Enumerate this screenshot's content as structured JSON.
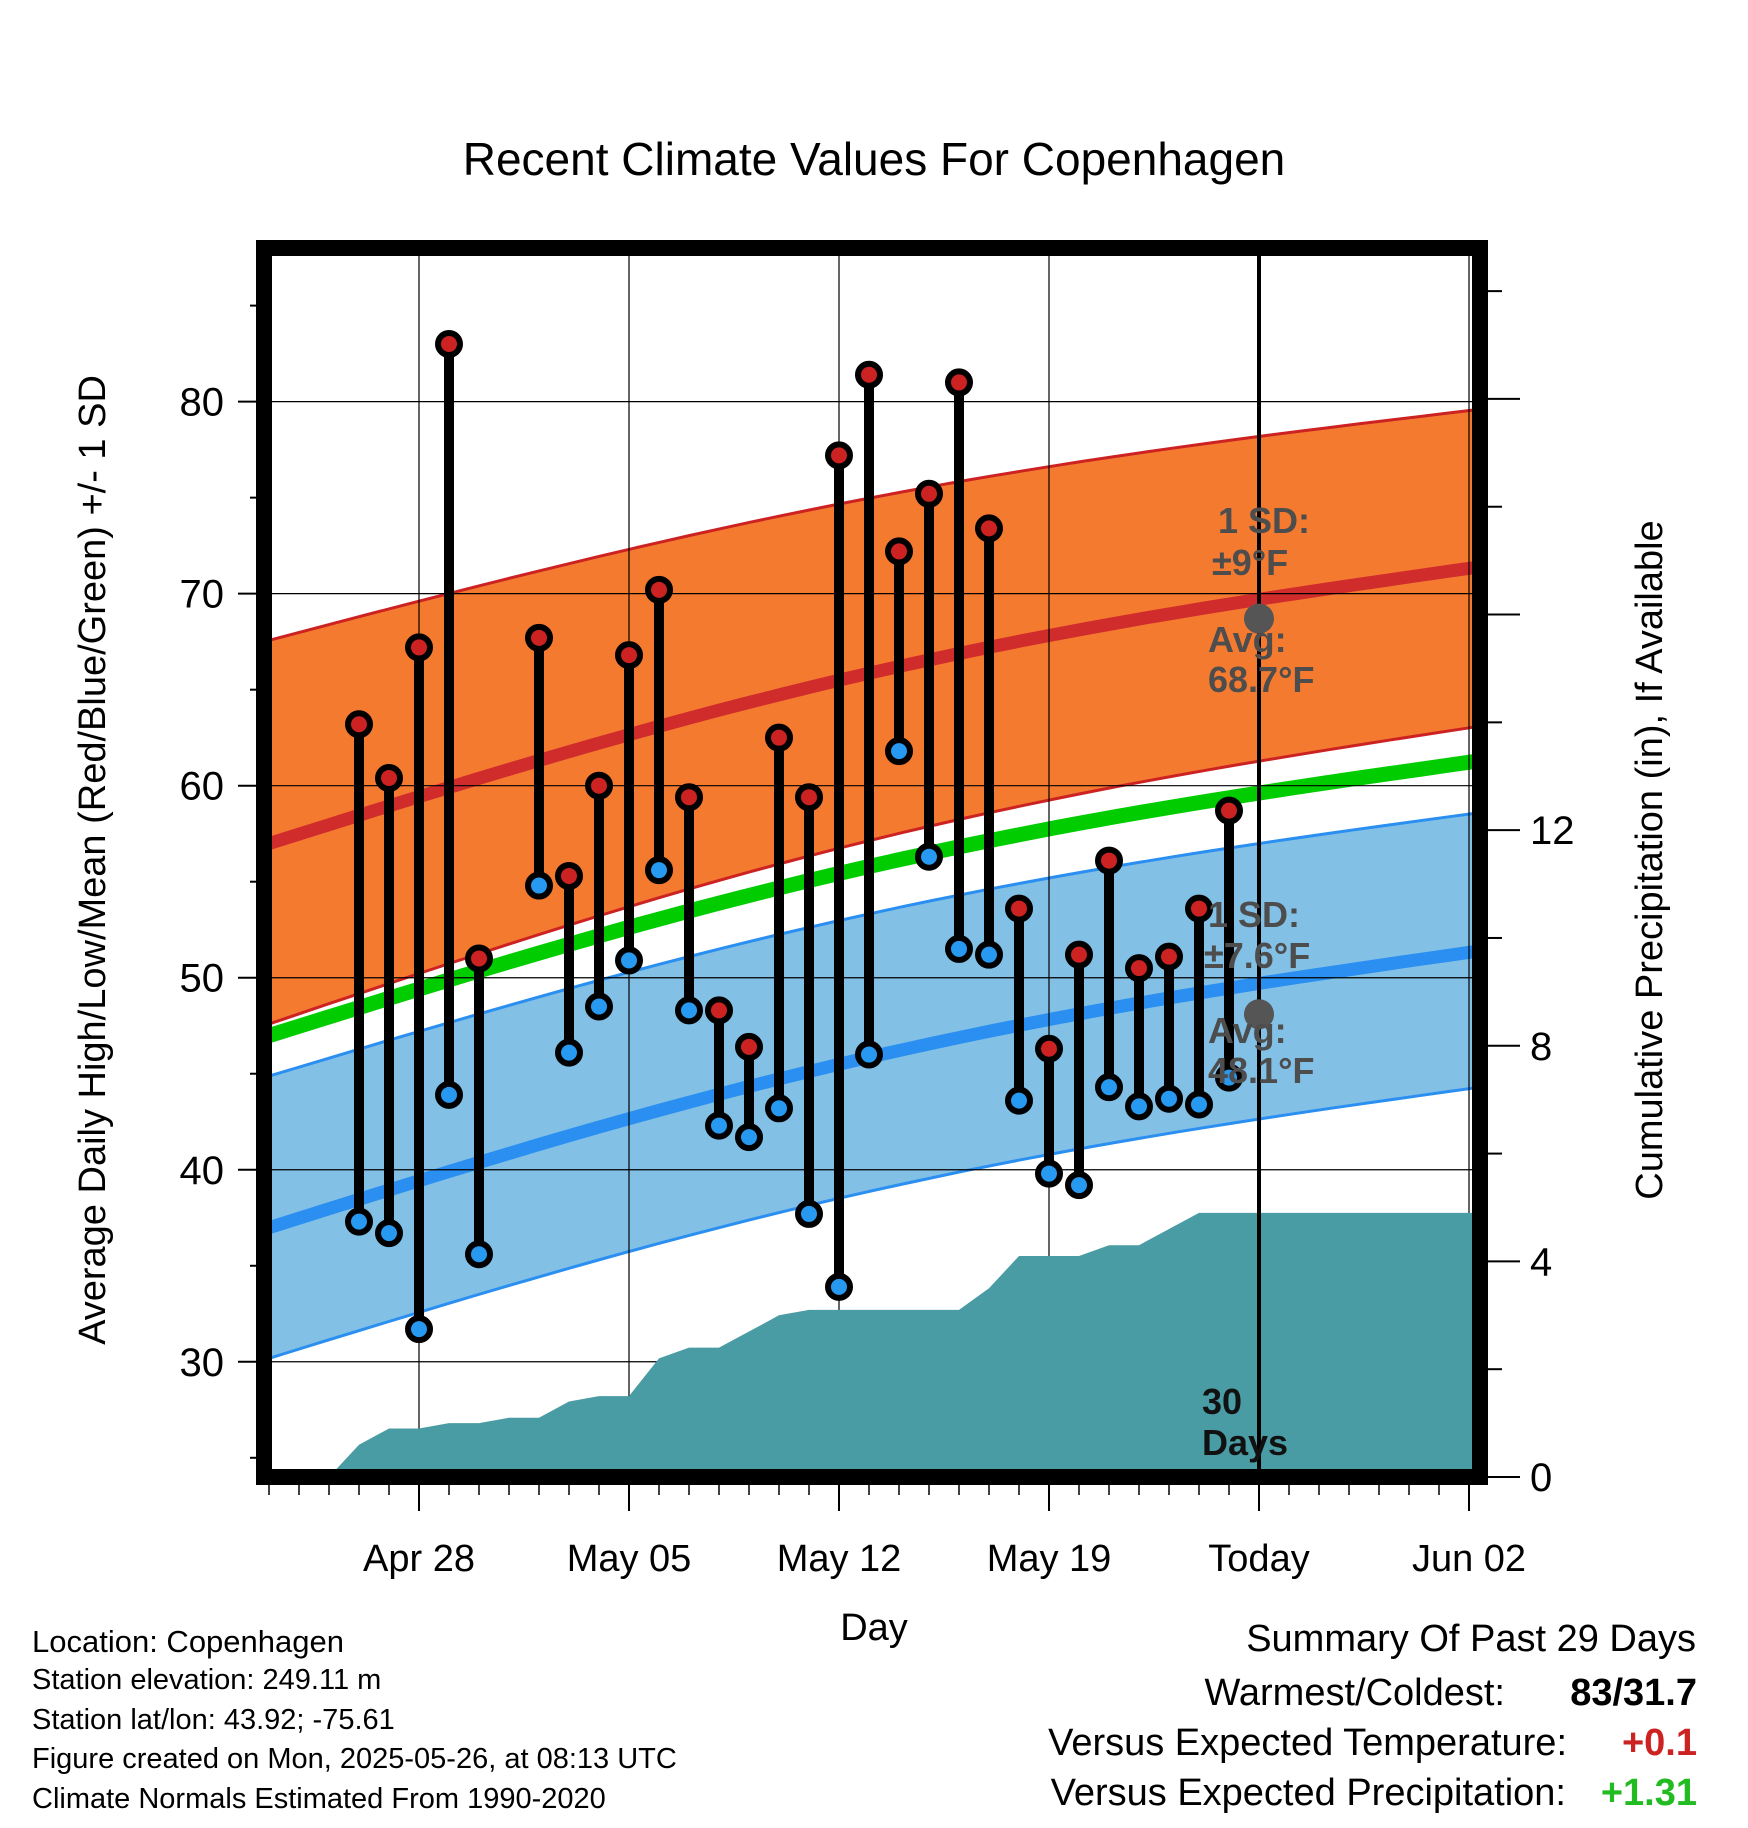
{
  "chart_data": {
    "type": "line",
    "title": "Recent Climate Values For Copenhagen",
    "xlabel": "Day",
    "ylabel": "Average Daily High/Low/Mean (Red/Blue/Green) +/- 1 SD",
    "y2label": "Cumulative Precipitation (in), If Available",
    "ylim": [
      24,
      88
    ],
    "y2lim": [
      0,
      22.8
    ],
    "yticks": [
      "30",
      "40",
      "50",
      "60",
      "70",
      "80"
    ],
    "y2ticks": [
      "0",
      "4",
      "8",
      "12"
    ],
    "x_tick_labels": [
      "Apr 28",
      "May 05",
      "May 12",
      "May 19",
      "Today",
      "Jun 02"
    ],
    "grid": true,
    "days": [
      {
        "date": "2025-04-26",
        "high": 63.2,
        "low": 37.3
      },
      {
        "date": "2025-04-27",
        "high": 60.4,
        "low": 36.7
      },
      {
        "date": "2025-04-28",
        "high": 67.2,
        "low": 31.7
      },
      {
        "date": "2025-04-29",
        "high": 83.0,
        "low": 43.9
      },
      {
        "date": "2025-04-30",
        "high": 51.0,
        "low": 35.6
      },
      {
        "date": "2025-05-02",
        "high": 67.7,
        "low": 54.8
      },
      {
        "date": "2025-05-03",
        "high": 55.3,
        "low": 46.1
      },
      {
        "date": "2025-05-04",
        "high": 60.0,
        "low": 48.5
      },
      {
        "date": "2025-05-05",
        "high": 66.8,
        "low": 50.9
      },
      {
        "date": "2025-05-06",
        "high": 70.2,
        "low": 55.6
      },
      {
        "date": "2025-05-07",
        "high": 59.4,
        "low": 48.3
      },
      {
        "date": "2025-05-08",
        "high": 48.3,
        "low": 42.3
      },
      {
        "date": "2025-05-09",
        "high": 46.4,
        "low": 41.7
      },
      {
        "date": "2025-05-10",
        "high": 62.5,
        "low": 43.2
      },
      {
        "date": "2025-05-11",
        "high": 59.4,
        "low": 37.7
      },
      {
        "date": "2025-05-12",
        "high": 77.2,
        "low": 33.9
      },
      {
        "date": "2025-05-13",
        "high": 81.4,
        "low": 46.0
      },
      {
        "date": "2025-05-14",
        "high": 72.2,
        "low": 61.8
      },
      {
        "date": "2025-05-15",
        "high": 75.2,
        "low": 56.3
      },
      {
        "date": "2025-05-16",
        "high": 81.0,
        "low": 51.5
      },
      {
        "date": "2025-05-17",
        "high": 73.4,
        "low": 51.2
      },
      {
        "date": "2025-05-18",
        "high": 53.6,
        "low": 43.6
      },
      {
        "date": "2025-05-19",
        "high": 46.3,
        "low": 39.8
      },
      {
        "date": "2025-05-20",
        "high": 51.2,
        "low": 39.2
      },
      {
        "date": "2025-05-21",
        "high": 56.1,
        "low": 44.3
      },
      {
        "date": "2025-05-22",
        "high": 50.5,
        "low": 43.3
      },
      {
        "date": "2025-05-23",
        "high": 51.1,
        "low": 43.7
      },
      {
        "date": "2025-05-24",
        "high": 53.6,
        "low": 43.4
      },
      {
        "date": "2025-05-25",
        "high": 58.7,
        "low": 44.8
      }
    ],
    "normals": {
      "start_date": "2025-04-23",
      "end_date": "2025-06-04",
      "high_avg": [
        56.9,
        71.4
      ],
      "high_lower": [
        47.5,
        63.1
      ],
      "high_upper": [
        67.5,
        79.6
      ],
      "low_avg": [
        36.9,
        51.4
      ],
      "low_lower": [
        30.1,
        44.3
      ],
      "low_upper": [
        44.8,
        58.6
      ],
      "mean_avg": [
        46.9,
        61.3
      ]
    },
    "precipitation": [
      {
        "date": "2025-04-25",
        "value": 0.0
      },
      {
        "date": "2025-04-26",
        "value": 0.6
      },
      {
        "date": "2025-04-27",
        "value": 0.9
      },
      {
        "date": "2025-04-28",
        "value": 0.9
      },
      {
        "date": "2025-04-29",
        "value": 1.0
      },
      {
        "date": "2025-04-30",
        "value": 1.0
      },
      {
        "date": "2025-05-01",
        "value": 1.1
      },
      {
        "date": "2025-05-02",
        "value": 1.1
      },
      {
        "date": "2025-05-03",
        "value": 1.4
      },
      {
        "date": "2025-05-04",
        "value": 1.5
      },
      {
        "date": "2025-05-05",
        "value": 1.5
      },
      {
        "date": "2025-05-06",
        "value": 2.2
      },
      {
        "date": "2025-05-07",
        "value": 2.4
      },
      {
        "date": "2025-05-08",
        "value": 2.4
      },
      {
        "date": "2025-05-09",
        "value": 2.7
      },
      {
        "date": "2025-05-10",
        "value": 3.0
      },
      {
        "date": "2025-05-11",
        "value": 3.1
      },
      {
        "date": "2025-05-12",
        "value": 3.1
      },
      {
        "date": "2025-05-13",
        "value": 3.1
      },
      {
        "date": "2025-05-14",
        "value": 3.1
      },
      {
        "date": "2025-05-15",
        "value": 3.1
      },
      {
        "date": "2025-05-16",
        "value": 3.1
      },
      {
        "date": "2025-05-17",
        "value": 3.5
      },
      {
        "date": "2025-05-18",
        "value": 4.1
      },
      {
        "date": "2025-05-19",
        "value": 4.1
      },
      {
        "date": "2025-05-20",
        "value": 4.1
      },
      {
        "date": "2025-05-21",
        "value": 4.3
      },
      {
        "date": "2025-05-22",
        "value": 4.3
      },
      {
        "date": "2025-05-23",
        "value": 4.6
      },
      {
        "date": "2025-05-24",
        "value": 4.9
      },
      {
        "date": "2025-05-25",
        "value": 4.9
      },
      {
        "date": "2025-06-04",
        "value": 4.9
      }
    ],
    "today": "2025-05-26",
    "annotations": {
      "high_sd_label": "1 SD:",
      "high_sd_value": "±9°F",
      "high_avg_label": "Avg:",
      "high_avg_value": "68.7°F",
      "high_avg_today": 68.7,
      "low_sd_label": "1 SD:",
      "low_sd_value": "±7.6°F",
      "low_avg_label": "Avg:",
      "low_avg_value": "48.1°F",
      "low_avg_today": 48.1,
      "days_number": "30",
      "days_word": "Days"
    },
    "colors": {
      "high_band": "#f47a30",
      "high_line": "#d12c2c",
      "low_band": "#82c0e6",
      "low_line": "#2a8ff0",
      "mean_line": "#00cc00",
      "precip": "#4a9ca4",
      "high_marker": "#cc2222",
      "low_marker": "#2899f0",
      "annotation": "#4d4d4d"
    }
  },
  "info": {
    "location": "Location: Copenhagen",
    "elevation": "Station elevation: 249.11 m",
    "latlon": "Station lat/lon: 43.92; -75.61",
    "created": "Figure created on Mon, 2025-05-26, at 08:13 UTC",
    "normals": "Climate Normals Estimated From 1990-2020"
  },
  "summary": {
    "title": "Summary Of Past 29 Days",
    "warmest_label": "Warmest/Coldest:",
    "warmest_value": "83/31.7",
    "temp_label": "Versus Expected Temperature:",
    "temp_value": "+0.1",
    "temp_color": "#cc2222",
    "precip_label": "Versus Expected Precipitation:",
    "precip_value": "+1.31",
    "precip_color": "#22bb22"
  }
}
